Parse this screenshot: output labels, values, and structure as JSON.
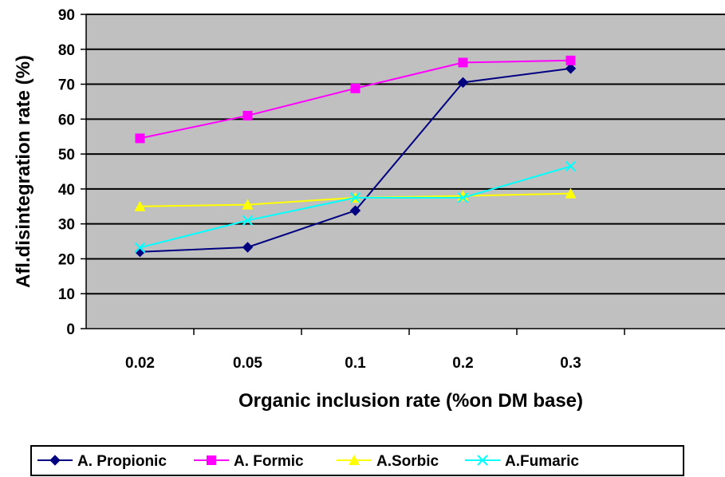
{
  "chart_data": {
    "type": "line",
    "title": "",
    "xlabel": "Organic inclusion rate (%on DM base)",
    "ylabel": "Afl.disintegration rate (%)",
    "categories": [
      "0.02",
      "0.05",
      "0.1",
      "0.2",
      "0.3"
    ],
    "ylim": [
      0,
      90
    ],
    "yticks": [
      0,
      10,
      20,
      30,
      40,
      50,
      60,
      70,
      80,
      90
    ],
    "grid": true,
    "legend_position": "bottom",
    "plot_background": "#C0C0C0",
    "series": [
      {
        "name": "A. Propionic",
        "color": "#000080",
        "marker": "diamond",
        "values": [
          22,
          23.3,
          33.8,
          70.5,
          74.5
        ]
      },
      {
        "name": "A. Formic",
        "color": "#FF00FF",
        "marker": "square",
        "values": [
          54.5,
          61,
          68.8,
          76.2,
          76.8
        ]
      },
      {
        "name": "A.Sorbic",
        "color": "#FFFF00",
        "marker": "triangle",
        "values": [
          35,
          35.5,
          37.5,
          38,
          38.7
        ]
      },
      {
        "name": "A.Fumaric",
        "color": "#00FFFF",
        "marker": "x",
        "values": [
          23.2,
          31,
          37.5,
          37.5,
          46.5
        ]
      }
    ]
  }
}
